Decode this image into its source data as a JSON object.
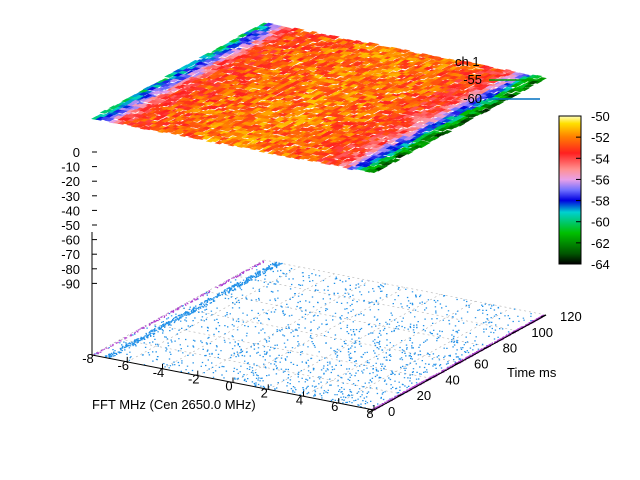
{
  "chart_data": {
    "type": "surface3d",
    "legend": {
      "title": "ch 1",
      "entries": [
        {
          "label": "-55",
          "color": "#00a000"
        },
        {
          "label": "-60",
          "color": "#0070c0"
        }
      ]
    },
    "xlabel": "FFT MHz (Cen 2650.0 MHz)",
    "ylabel": "Time ms",
    "zlabel": "",
    "xlim": [
      -8,
      8
    ],
    "ylim": [
      0,
      120
    ],
    "zlim": [
      -90,
      0
    ],
    "x_ticks": [
      "-8",
      "-6",
      "-4",
      "-2",
      "0",
      "2",
      "4",
      "6",
      "8"
    ],
    "y_ticks": [
      "0",
      "20",
      "40",
      "60",
      "80",
      "100",
      "120"
    ],
    "z_ticks": [
      "0",
      "-10",
      "-20",
      "-30",
      "-40",
      "-50",
      "-60",
      "-70",
      "-80",
      "-90"
    ],
    "colorbar": {
      "range": [
        -64,
        -50
      ],
      "ticks": [
        "-50",
        "-52",
        "-54",
        "-56",
        "-58",
        "-60",
        "-62",
        "-64"
      ]
    },
    "surface_profile": {
      "x": [
        -8,
        -7.5,
        -7,
        -6.5,
        -6,
        -4,
        0,
        4,
        6,
        6.5,
        7,
        7.5,
        8
      ],
      "z": [
        -60,
        -58,
        -56,
        -54,
        -53,
        -52.5,
        -52,
        -52.5,
        -54,
        -56,
        -58,
        -61,
        -63
      ]
    },
    "grid": true
  }
}
